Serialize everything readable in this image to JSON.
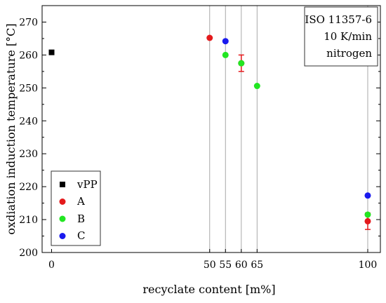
{
  "chart_data": {
    "type": "scatter",
    "xlabel": "recyclate content [m%]",
    "ylabel": "oxdiation induction temperature [°C]",
    "xlim": [
      -3,
      104
    ],
    "ylim": [
      200,
      275
    ],
    "x_ticks": [
      0,
      50,
      55,
      60,
      65,
      100
    ],
    "y_ticks": [
      200,
      210,
      220,
      230,
      240,
      250,
      260,
      270
    ],
    "x_tick_labels": [
      "0",
      "50",
      "55",
      "60",
      "65",
      "100"
    ],
    "y_tick_labels": [
      "200",
      "210",
      "220",
      "230",
      "240",
      "250",
      "260",
      "270"
    ],
    "vertical_gridlines_at": [
      50,
      55,
      60,
      65,
      100
    ],
    "grid": true,
    "legend_position": "bottom-left",
    "annotation": [
      "ISO 11357-6",
      "10 K/min",
      "nitrogen"
    ],
    "series": [
      {
        "name": "vPP",
        "marker": "square",
        "color": "#000000",
        "points": [
          {
            "x": 0,
            "y": 260.8
          }
        ]
      },
      {
        "name": "A",
        "marker": "circle",
        "color": "#e41a1c",
        "points": [
          {
            "x": 50,
            "y": 265.2
          },
          {
            "x": 60,
            "y": 257.5,
            "err": 2.5
          },
          {
            "x": 100,
            "y": 209.5,
            "err": 2.5
          }
        ]
      },
      {
        "name": "B",
        "marker": "circle",
        "color": "#22e622",
        "points": [
          {
            "x": 55,
            "y": 260.0
          },
          {
            "x": 60,
            "y": 257.5
          },
          {
            "x": 65,
            "y": 250.6
          },
          {
            "x": 100,
            "y": 211.5
          }
        ]
      },
      {
        "name": "C",
        "marker": "circle",
        "color": "#1a1aee",
        "points": [
          {
            "x": 55,
            "y": 264.2
          },
          {
            "x": 100,
            "y": 217.3
          }
        ]
      }
    ]
  }
}
